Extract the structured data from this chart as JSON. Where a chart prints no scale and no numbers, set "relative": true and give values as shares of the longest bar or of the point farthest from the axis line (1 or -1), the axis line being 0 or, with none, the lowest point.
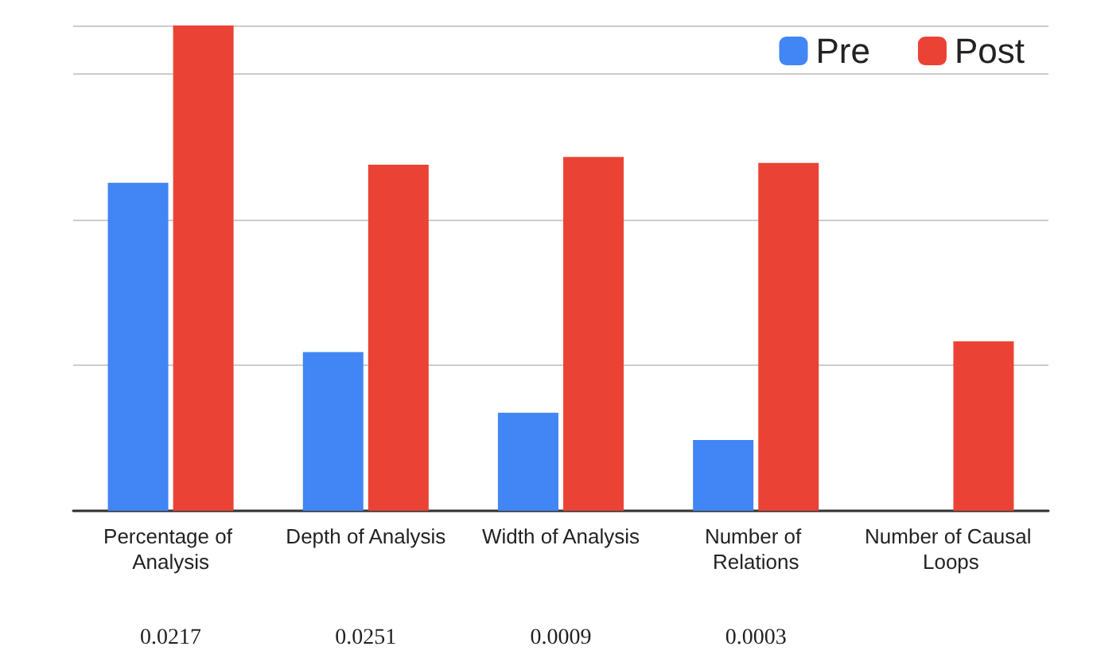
{
  "chart_data": {
    "type": "bar",
    "relative": true,
    "categories": [
      "Percentage of Analysis",
      "Depth of Analysis",
      "Width of Analysis",
      "Number of Relations",
      "Number of Causal Loops"
    ],
    "series": [
      {
        "name": "Pre",
        "color": "#4285f4",
        "values": [
          0.676,
          0.327,
          0.202,
          0.146,
          null
        ]
      },
      {
        "name": "Post",
        "color": "#ea4335",
        "values": [
          1,
          0.713,
          0.729,
          0.717,
          0.349
        ]
      }
    ],
    "annotations": [
      "0.0217",
      "0.0251",
      "0.0009",
      "0.0003"
    ],
    "grid": "y",
    "legend": "top right"
  }
}
